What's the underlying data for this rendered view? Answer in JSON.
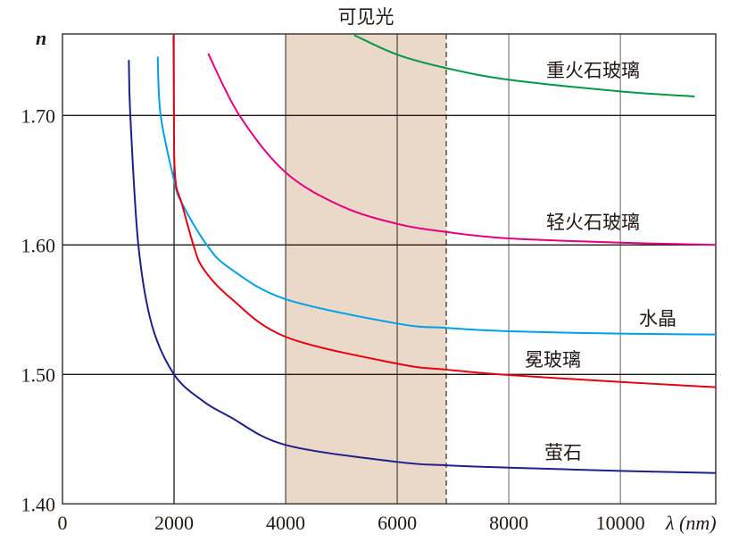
{
  "chart_data": {
    "type": "line",
    "title": "可见光",
    "xlabel": "λ (nm)",
    "ylabel": "n",
    "xlim": [
      0,
      11710
    ],
    "ylim": [
      1.4,
      1.7625
    ],
    "xticks": [
      0,
      2000,
      4000,
      6000,
      8000,
      10000
    ],
    "xtick_labels": [
      "0",
      "2000",
      "4000",
      "6000",
      "8000",
      "10000"
    ],
    "yticks": [
      1.4,
      1.5,
      1.6,
      1.7
    ],
    "ytick_labels": [
      "1.40",
      "1.50",
      "1.60",
      "1.70"
    ],
    "grid": true,
    "shaded_band": {
      "label": "可见光",
      "x": [
        4000,
        6880
      ],
      "color": "#ead9c9"
    },
    "series": [
      {
        "name": "重火石玻璃",
        "color": "#009944",
        "x": [
          5230,
          6000,
          6880,
          8000,
          10000,
          11330
        ],
        "y": [
          1.762,
          1.747,
          1.7366,
          1.7276,
          1.7186,
          1.7147
        ]
      },
      {
        "name": "轻火石玻璃",
        "color": "#e4007f",
        "x": [
          2613,
          3173,
          4000,
          5000,
          6000,
          6880,
          8000,
          10000,
          11710
        ],
        "y": [
          1.7478,
          1.7,
          1.656,
          1.63,
          1.6163,
          1.61,
          1.605,
          1.6018,
          1.6
        ]
      },
      {
        "name": "水晶",
        "color": "#00a0e9",
        "x": [
          1707,
          1760,
          2000,
          2133,
          2587,
          3000,
          4000,
          6000,
          6880,
          8000,
          10000,
          11710
        ],
        "y": [
          1.7455,
          1.7,
          1.65,
          1.6328,
          1.6,
          1.582,
          1.5581,
          1.5393,
          1.5359,
          1.5333,
          1.5315,
          1.5308
        ]
      },
      {
        "name": "冕玻璃",
        "color": "#e60012",
        "x": [
          1990,
          1998,
          2005,
          2040,
          2133,
          2347,
          2520,
          3000,
          4000,
          6000,
          6880,
          8000,
          10000,
          11710
        ],
        "y": [
          1.762,
          1.7,
          1.665,
          1.645,
          1.6328,
          1.6,
          1.582,
          1.5595,
          1.529,
          1.5083,
          1.5037,
          1.4995,
          1.4942,
          1.4901
        ]
      },
      {
        "name": "萤石",
        "color": "#1d2088",
        "x": [
          1190,
          1216,
          1360,
          1600,
          2000,
          2500,
          3000,
          4000,
          6000,
          6880,
          8000,
          10000,
          11710
        ],
        "y": [
          1.7428,
          1.7,
          1.6,
          1.5386,
          1.5,
          1.48,
          1.4673,
          1.4455,
          1.4324,
          1.4298,
          1.428,
          1.4255,
          1.4238
        ]
      }
    ]
  }
}
